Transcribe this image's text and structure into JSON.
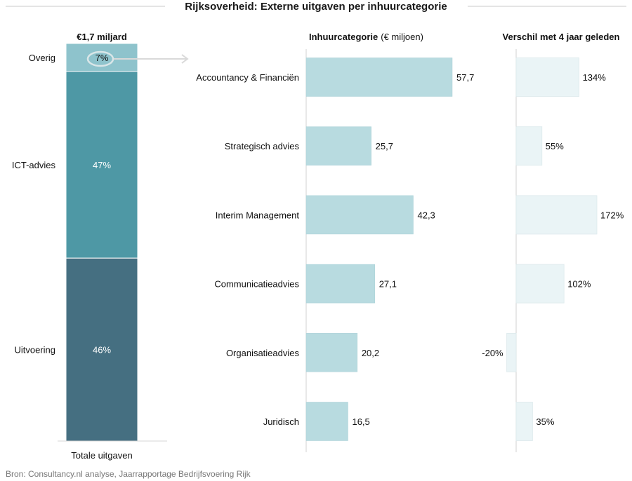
{
  "title": "Rijksoverheid: Externe uitgaven per inhuurcategorie",
  "source": "Bron: Consultancy.nl analyse, Jaarrapportage Bedrijfsvoering Rijk",
  "colors": {
    "overig": "#8ec3cc",
    "ict": "#4e98a5",
    "uitvoering": "#456f81",
    "bar": "#b8dbe0",
    "bar_change": "#eaf4f6",
    "highlight_ring": "#d9e6e8",
    "axis": "#d0d0d0"
  },
  "chart_data": [
    {
      "type": "bar",
      "subtype": "stacked-100",
      "title": "€1,7 miljard",
      "xlabel": "Totale uitgaven",
      "segments": [
        {
          "label": "Overig",
          "value": 7,
          "value_label": "7%",
          "color": "#8ec3cc",
          "highlighted": true
        },
        {
          "label": "ICT-advies",
          "value": 47,
          "value_label": "47%",
          "color": "#4e98a5"
        },
        {
          "label": "Uitvoering",
          "value": 46,
          "value_label": "46%",
          "color": "#456f81"
        }
      ]
    },
    {
      "type": "bar",
      "orientation": "horizontal",
      "title": "Inhuurcategorie",
      "title_unit": "(€ miljoen)",
      "categories": [
        "Accountancy & Financiën",
        "Strategisch advies",
        "Interim Management",
        "Communicatieadvies",
        "Organisatieadvies",
        "Juridisch"
      ],
      "values": [
        57.7,
        25.7,
        42.3,
        27.1,
        20.2,
        16.5
      ],
      "value_labels": [
        "57,7",
        "25,7",
        "42,3",
        "27,1",
        "20,2",
        "16,5"
      ]
    },
    {
      "type": "bar",
      "orientation": "horizontal",
      "title": "Verschil met 4 jaar geleden",
      "categories": [
        "Accountancy & Financiën",
        "Strategisch advies",
        "Interim Management",
        "Communicatieadvies",
        "Organisatieadvies",
        "Juridisch"
      ],
      "values": [
        134,
        55,
        172,
        102,
        -20,
        35
      ],
      "value_labels": [
        "134%",
        "55%",
        "172%",
        "102%",
        "-20%",
        "35%"
      ]
    }
  ]
}
